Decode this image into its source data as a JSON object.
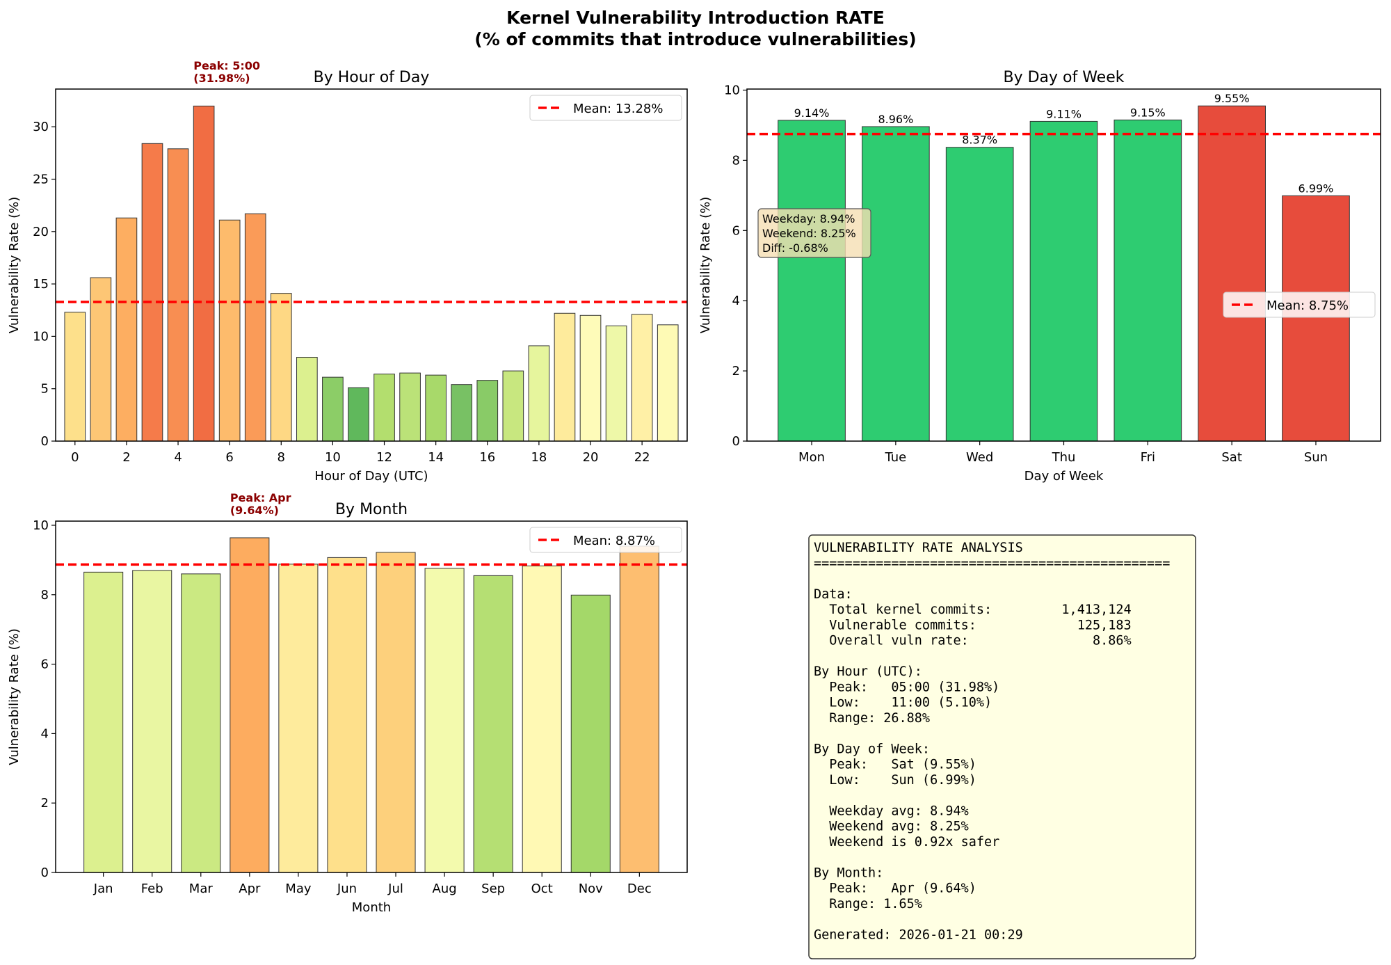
{
  "title_line1": "Kernel Vulnerability Introduction RATE",
  "title_line2": "(% of commits that introduce vulnerabilities)",
  "chart_data": [
    {
      "type": "bar",
      "title": "By Hour of Day",
      "xlabel": "Hour of Day (UTC)",
      "ylabel": "Vulnerability Rate (%)",
      "categories": [
        0,
        1,
        2,
        3,
        4,
        5,
        6,
        7,
        8,
        9,
        10,
        11,
        12,
        13,
        14,
        15,
        16,
        17,
        18,
        19,
        20,
        21,
        22,
        23
      ],
      "values": [
        12.3,
        15.6,
        21.3,
        28.4,
        27.9,
        31.98,
        21.1,
        21.7,
        14.1,
        8.0,
        6.1,
        5.1,
        6.4,
        6.5,
        6.3,
        5.4,
        5.8,
        6.7,
        9.1,
        12.2,
        12.0,
        11.0,
        12.1,
        11.1
      ],
      "colors": [
        "#fde08b",
        "#fdc675",
        "#fdae61",
        "#f57b4a",
        "#f88e52",
        "#f16d43",
        "#fdbb6c",
        "#fa9b58",
        "#fed884",
        "#dcf08f",
        "#8ccd67",
        "#60b85c",
        "#b3de6e",
        "#bbe278",
        "#a8d96a",
        "#78c164",
        "#89cb67",
        "#c8e77f",
        "#e6f59d",
        "#feeb9c",
        "#fefbb9",
        "#eef8a8",
        "#fff0a6",
        "#fefab5"
      ],
      "xticks": [
        "0",
        "2",
        "4",
        "6",
        "8",
        "10",
        "12",
        "14",
        "16",
        "18",
        "20",
        "22"
      ],
      "yticks": [
        0,
        5,
        10,
        15,
        20,
        25,
        30
      ],
      "ylim": [
        0,
        33.6
      ],
      "mean": 13.28,
      "legend": "Mean: 13.28%",
      "legend_position": "top-right",
      "annotation": [
        "Peak: 5:00",
        "(31.98%)"
      ],
      "grid": false
    },
    {
      "type": "bar",
      "title": "By Day of Week",
      "xlabel": "Day of Week",
      "ylabel": "Vulnerability Rate (%)",
      "categories": [
        "Mon",
        "Tue",
        "Wed",
        "Thu",
        "Fri",
        "Sat",
        "Sun"
      ],
      "values": [
        9.14,
        8.96,
        8.37,
        9.11,
        9.15,
        9.55,
        6.99
      ],
      "data_labels": [
        "9.14%",
        "8.96%",
        "8.37%",
        "9.11%",
        "9.15%",
        "9.55%",
        "6.99%"
      ],
      "colors": [
        "#2ecc71",
        "#2ecc71",
        "#2ecc71",
        "#2ecc71",
        "#2ecc71",
        "#e74c3c",
        "#e74c3c"
      ],
      "yticks": [
        0,
        2,
        4,
        6,
        8,
        10
      ],
      "ylim": [
        0,
        10.03
      ],
      "mean": 8.75,
      "legend": "Mean: 8.75%",
      "legend_position": "top-right",
      "info_box": [
        "Weekday: 8.94%",
        "Weekend: 8.25%",
        "Diff: -0.68%"
      ],
      "grid": false
    },
    {
      "type": "bar",
      "title": "By Month",
      "xlabel": "Month",
      "ylabel": "Vulnerability Rate (%)",
      "categories": [
        "Jan",
        "Feb",
        "Mar",
        "Apr",
        "May",
        "Jun",
        "Jul",
        "Aug",
        "Sep",
        "Oct",
        "Nov",
        "Dec"
      ],
      "values": [
        8.65,
        8.7,
        8.6,
        9.64,
        8.88,
        9.07,
        9.22,
        8.76,
        8.55,
        8.83,
        7.99,
        9.4
      ],
      "colors": [
        "#dcf08f",
        "#e9f6a2",
        "#cbe982",
        "#fdac5f",
        "#feeb9c",
        "#fee08b",
        "#fdd07c",
        "#f3faad",
        "#b5df73",
        "#fff9b4",
        "#a4d869",
        "#fdbe70"
      ],
      "yticks": [
        0,
        2,
        4,
        6,
        8,
        10
      ],
      "ylim": [
        0,
        10.12
      ],
      "mean": 8.87,
      "legend": "Mean: 8.87%",
      "legend_position": "top-right",
      "annotation": [
        "Peak: Apr",
        "(9.64%)"
      ],
      "grid": false
    }
  ],
  "summary_box": {
    "lines": [
      "VULNERABILITY RATE ANALYSIS",
      "==============================================",
      "",
      "Data:",
      "  Total kernel commits:         1,413,124",
      "  Vulnerable commits:             125,183",
      "  Overall vuln rate:                8.86%",
      "",
      "By Hour (UTC):",
      "  Peak:   05:00 (31.98%)",
      "  Low:    11:00 (5.10%)",
      "  Range: 26.88%",
      "",
      "By Day of Week:",
      "  Peak:   Sat (9.55%)",
      "  Low:    Sun (6.99%)",
      "",
      "  Weekday avg: 8.94%",
      "  Weekend avg: 8.25%",
      "  Weekend is 0.92x safer",
      "",
      "By Month:",
      "  Peak:   Apr (9.64%)",
      "  Range: 1.65%",
      "",
      "Generated: 2026-01-21 00:29"
    ]
  },
  "mean_line_color": "#ff0000",
  "annotation_color": "#8b0000"
}
